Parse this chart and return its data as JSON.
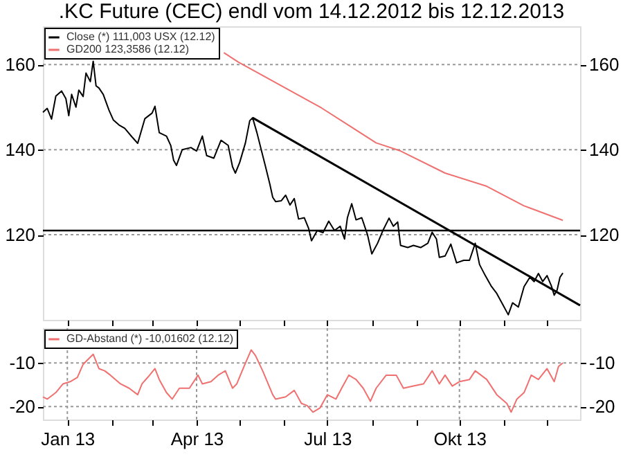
{
  "chart_data": [
    {
      "type": "line",
      "title": ".KC Future (CEC) endl vom 14.12.2012 bis 12.12.2013",
      "xlim": [
        "2012-12-15",
        "2013-12-24"
      ],
      "ylim": [
        100,
        169
      ],
      "yticks": [
        120,
        140,
        160
      ],
      "y2lim": [
        100,
        169
      ],
      "y2ticks": [
        120,
        140,
        160
      ],
      "xticks": [
        {
          "value": "2013-01-01",
          "label": null
        },
        {
          "value": "2013-02-01",
          "label": null
        },
        {
          "value": "2013-03-01",
          "label": null
        },
        {
          "value": "2013-04-01",
          "label": null
        },
        {
          "value": "2013-05-01",
          "label": null
        },
        {
          "value": "2013-06-01",
          "label": null
        },
        {
          "value": "2013-07-01",
          "label": null
        },
        {
          "value": "2013-08-01",
          "label": null
        },
        {
          "value": "2013-09-01",
          "label": null
        },
        {
          "value": "2013-10-01",
          "label": null
        },
        {
          "value": "2013-11-01",
          "label": null
        },
        {
          "value": "2013-12-01",
          "label": null
        }
      ],
      "tick_labels": "y",
      "grid": true,
      "legend": "top left",
      "ref_lines": [
        {
          "axis": "y",
          "value": 121,
          "color": "#000000"
        }
      ],
      "series": [
        {
          "name": "Close (*) 111,003 USX (12.12)",
          "color": "#000000",
          "x": [
            "2012-12-15",
            "2012-12-18",
            "2012-12-21",
            "2012-12-24",
            "2012-12-28",
            "2012-12-31",
            "2013-01-02",
            "2013-01-04",
            "2013-01-07",
            "2013-01-09",
            "2013-01-12",
            "2013-01-14",
            "2013-01-17",
            "2013-01-19",
            "2013-01-21",
            "2013-01-23",
            "2013-01-26",
            "2013-01-30",
            "2013-02-02",
            "2013-02-06",
            "2013-02-10",
            "2013-02-15",
            "2013-02-19",
            "2013-02-24",
            "2013-03-01",
            "2013-03-03",
            "2013-03-06",
            "2013-03-11",
            "2013-03-14",
            "2013-03-16",
            "2013-03-18",
            "2013-03-22",
            "2013-03-28",
            "2013-04-01",
            "2013-04-05",
            "2013-04-08",
            "2013-04-13",
            "2013-04-18",
            "2013-04-23",
            "2013-04-26",
            "2013-04-28",
            "2013-05-01",
            "2013-05-05",
            "2013-05-08",
            "2013-05-10",
            "2013-05-13",
            "2013-05-16",
            "2013-05-19",
            "2013-05-22",
            "2013-05-24",
            "2013-05-26",
            "2013-05-30",
            "2013-06-02",
            "2013-06-05",
            "2013-06-08",
            "2013-06-11",
            "2013-06-15",
            "2013-06-18",
            "2013-06-20",
            "2013-06-24",
            "2013-06-28",
            "2013-07-02",
            "2013-07-06",
            "2013-07-10",
            "2013-07-13",
            "2013-07-15",
            "2013-07-18",
            "2013-07-21",
            "2013-07-25",
            "2013-07-29",
            "2013-08-01",
            "2013-08-05",
            "2013-08-09",
            "2013-08-13",
            "2013-08-16",
            "2013-08-19",
            "2013-08-21",
            "2013-08-26",
            "2013-08-30",
            "2013-09-04",
            "2013-09-09",
            "2013-09-12",
            "2013-09-15",
            "2013-09-17",
            "2013-09-21",
            "2013-09-25",
            "2013-09-29",
            "2013-10-04",
            "2013-10-08",
            "2013-10-12",
            "2013-10-15",
            "2013-10-19",
            "2013-10-23",
            "2013-10-27",
            "2013-10-31",
            "2013-11-04",
            "2013-11-07",
            "2013-11-11",
            "2013-11-15",
            "2013-11-19",
            "2013-11-22",
            "2013-11-25",
            "2013-11-28",
            "2013-12-01",
            "2013-12-04",
            "2013-12-06",
            "2013-12-08",
            "2013-12-10",
            "2013-12-12"
          ],
          "values": [
            148.8,
            149.7,
            147.2,
            152.6,
            153.8,
            152,
            148,
            153,
            150,
            154,
            152.5,
            158,
            156,
            160.8,
            155,
            154.5,
            153,
            149.3,
            147,
            145.8,
            145,
            143,
            141.5,
            147.3,
            148.6,
            150.2,
            144,
            143.2,
            141,
            137.5,
            136.3,
            140,
            140.5,
            139.7,
            143.2,
            138.6,
            138,
            142.2,
            141,
            136,
            134.5,
            137,
            141.6,
            146.8,
            147.5,
            144,
            140,
            136,
            131.9,
            128.8,
            127.8,
            128,
            129.3,
            127,
            128.5,
            123.7,
            124,
            121.5,
            118.6,
            121,
            120.5,
            123.2,
            121,
            122,
            119,
            124,
            127.3,
            123.5,
            124,
            120,
            115.5,
            118,
            121.2,
            123.9,
            122,
            123,
            117.5,
            117,
            117.5,
            117,
            118,
            120.6,
            119,
            114.7,
            115,
            117.8,
            113.4,
            114,
            114,
            118,
            113,
            110.4,
            108,
            106.2,
            103.7,
            101.2,
            104,
            103,
            107.8,
            110,
            109,
            110.9,
            109,
            110.4,
            108,
            105.8,
            107,
            110,
            111
          ]
        },
        {
          "name": "GD200 123,3586 (12.12)",
          "color": "#f07070",
          "x": [
            "2013-04-20",
            "2013-04-30",
            "2013-06-27",
            "2013-08-04",
            "2013-08-21",
            "2013-09-21",
            "2013-10-20",
            "2013-11-15",
            "2013-12-12"
          ],
          "values": [
            162.8,
            160.6,
            149.8,
            141.6,
            139.7,
            134.5,
            131.4,
            126.8,
            123.4
          ]
        },
        {
          "type": "line",
          "color": "#000000",
          "x": [
            "2013-05-10",
            "2013-12-24"
          ],
          "values": [
            147.5,
            103.4
          ]
        }
      ]
    },
    {
      "type": "line",
      "xlim": [
        "2012-12-15",
        "2013-12-24"
      ],
      "ylim": [
        -23,
        -2
      ],
      "yticks": [
        -20,
        -10
      ],
      "y2lim": [
        -23,
        -2
      ],
      "y2ticks": [
        -20,
        -10
      ],
      "xticks": [
        {
          "value": "2013-01-01",
          "label": "Jan 13"
        },
        {
          "value": "2013-02-01",
          "label": null
        },
        {
          "value": "2013-03-01",
          "label": null
        },
        {
          "value": "2013-04-01",
          "label": "Apr 13"
        },
        {
          "value": "2013-05-01",
          "label": null
        },
        {
          "value": "2013-06-01",
          "label": null
        },
        {
          "value": "2013-07-01",
          "label": "Jul 13"
        },
        {
          "value": "2013-08-01",
          "label": null
        },
        {
          "value": "2013-09-01",
          "label": null
        },
        {
          "value": "2013-10-01",
          "label": "Okt 13"
        },
        {
          "value": "2013-11-01",
          "label": null
        },
        {
          "value": "2013-12-01",
          "label": null
        }
      ],
      "grid": true,
      "legend": "top left",
      "series": [
        {
          "name": "GD-Abstand (*) -10,01602 (12.12)",
          "color": "#f07070",
          "x": [
            "2012-12-15",
            "2012-12-18",
            "2012-12-24",
            "2012-12-29",
            "2013-01-03",
            "2013-01-08",
            "2013-01-12",
            "2013-01-19",
            "2013-01-23",
            "2013-01-27",
            "2013-01-31",
            "2013-02-07",
            "2013-02-13",
            "2013-02-19",
            "2013-02-22",
            "2013-02-26",
            "2013-03-03",
            "2013-03-06",
            "2013-03-11",
            "2013-03-15",
            "2013-03-20",
            "2013-03-27",
            "2013-04-02",
            "2013-04-05",
            "2013-04-11",
            "2013-04-16",
            "2013-04-21",
            "2013-04-26",
            "2013-04-29",
            "2013-05-04",
            "2013-05-09",
            "2013-05-12",
            "2013-05-17",
            "2013-05-24",
            "2013-05-26",
            "2013-06-02",
            "2013-06-08",
            "2013-06-13",
            "2013-06-17",
            "2013-06-21",
            "2013-06-26",
            "2013-07-01",
            "2013-07-07",
            "2013-07-11",
            "2013-07-16",
            "2013-07-21",
            "2013-07-26",
            "2013-07-31",
            "2013-08-04",
            "2013-08-11",
            "2013-08-18",
            "2013-08-23",
            "2013-08-30",
            "2013-09-06",
            "2013-09-12",
            "2013-09-17",
            "2013-09-21",
            "2013-09-26",
            "2013-10-01",
            "2013-10-08",
            "2013-10-12",
            "2013-10-20",
            "2013-10-27",
            "2013-11-03",
            "2013-11-06",
            "2013-11-10",
            "2013-11-15",
            "2013-11-20",
            "2013-11-25",
            "2013-12-01",
            "2013-12-06",
            "2013-12-09",
            "2013-12-12"
          ],
          "values": [
            -17.8,
            -18.3,
            -16.8,
            -14.8,
            -14.3,
            -13.3,
            -10.3,
            -8,
            -11.3,
            -11.8,
            -12.8,
            -14.8,
            -15.8,
            -17.3,
            -14.8,
            -13.3,
            -11.3,
            -13.8,
            -16.8,
            -18.3,
            -15.8,
            -15.8,
            -12.8,
            -14.8,
            -14.3,
            -12.8,
            -11.8,
            -15.8,
            -14.8,
            -10.8,
            -7,
            -8.3,
            -11.8,
            -17.3,
            -18.3,
            -17.8,
            -16.3,
            -19.3,
            -19.8,
            -21.3,
            -20.3,
            -17.3,
            -18.3,
            -15.8,
            -12.8,
            -13.8,
            -15.8,
            -18.8,
            -15.8,
            -12.8,
            -12.8,
            -15.8,
            -15.3,
            -14.8,
            -11.8,
            -14.8,
            -12.8,
            -15.3,
            -14.3,
            -13.8,
            -11.8,
            -13.8,
            -17.3,
            -19.3,
            -21.3,
            -18.3,
            -16.8,
            -12.8,
            -13.8,
            -11.3,
            -14.3,
            -10.8,
            -10
          ]
        }
      ]
    }
  ]
}
